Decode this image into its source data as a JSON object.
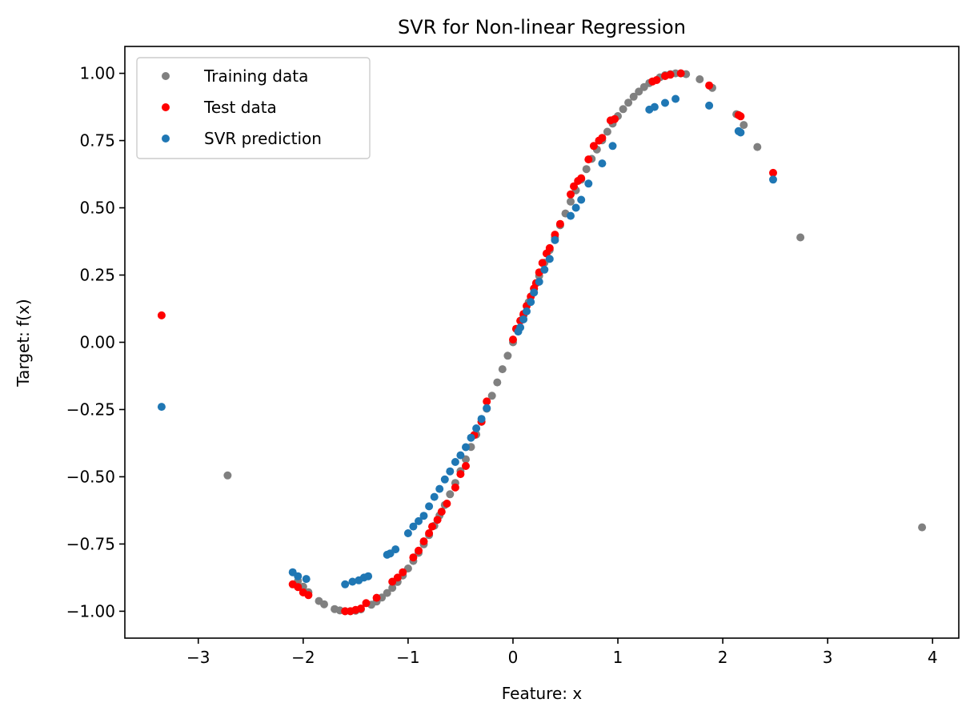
{
  "chart_data": {
    "type": "scatter",
    "title": "SVR for Non-linear Regression",
    "xlabel": "Feature: x",
    "ylabel": "Target: f(x)",
    "xlim": [
      -3.7,
      4.25
    ],
    "ylim": [
      -1.1,
      1.1
    ],
    "xticks": [
      -3,
      -2,
      -1,
      0,
      1,
      2,
      3,
      4
    ],
    "xtick_labels": [
      "−3",
      "−2",
      "−1",
      "0",
      "1",
      "2",
      "3",
      "4"
    ],
    "yticks": [
      1.0,
      0.75,
      0.5,
      0.25,
      0.0,
      -0.25,
      -0.5,
      -0.75,
      -1.0
    ],
    "ytick_labels": [
      "1.00",
      "0.75",
      "0.50",
      "0.25",
      "0.00",
      "−0.25",
      "−0.50",
      "−0.75",
      "−1.00"
    ],
    "grid": false,
    "legend_position": "top-left",
    "series": [
      {
        "name": "Training data",
        "color": "#808080",
        "x": [
          -2.72,
          -2.05,
          -2.0,
          -1.95,
          -1.85,
          -1.8,
          -1.7,
          -1.65,
          -1.6,
          -1.55,
          -1.5,
          -1.45,
          -1.35,
          -1.3,
          -1.25,
          -1.2,
          -1.15,
          -1.1,
          -1.05,
          -1.0,
          -0.95,
          -0.9,
          -0.85,
          -0.8,
          -0.75,
          -0.7,
          -0.65,
          -0.6,
          -0.55,
          -0.5,
          -0.45,
          -0.4,
          -0.35,
          -0.3,
          -0.25,
          -0.2,
          -0.15,
          -0.1,
          -0.05,
          0.0,
          0.05,
          0.1,
          0.15,
          0.2,
          0.25,
          0.3,
          0.35,
          0.4,
          0.45,
          0.5,
          0.55,
          0.6,
          0.65,
          0.7,
          0.75,
          0.8,
          0.85,
          0.9,
          0.95,
          1.0,
          1.05,
          1.1,
          1.15,
          1.2,
          1.25,
          1.3,
          1.4,
          1.45,
          1.5,
          1.55,
          1.6,
          1.65,
          1.78,
          1.9,
          2.13,
          2.2,
          2.33,
          2.74,
          3.9
        ],
        "y": [
          -0.495,
          -0.887,
          -0.909,
          -0.929,
          -0.962,
          -0.974,
          -0.992,
          -0.997,
          -1.0,
          -1.0,
          -0.998,
          -0.993,
          -0.976,
          -0.964,
          -0.949,
          -0.932,
          -0.913,
          -0.891,
          -0.867,
          -0.841,
          -0.813,
          -0.783,
          -0.751,
          -0.717,
          -0.682,
          -0.644,
          -0.605,
          -0.565,
          -0.523,
          -0.479,
          -0.435,
          -0.389,
          -0.343,
          -0.296,
          -0.247,
          -0.199,
          -0.149,
          -0.1,
          -0.05,
          0.0,
          0.05,
          0.1,
          0.149,
          0.199,
          0.247,
          0.296,
          0.343,
          0.389,
          0.435,
          0.479,
          0.523,
          0.565,
          0.605,
          0.644,
          0.682,
          0.717,
          0.751,
          0.783,
          0.813,
          0.841,
          0.867,
          0.891,
          0.913,
          0.932,
          0.949,
          0.964,
          0.985,
          0.993,
          0.997,
          1.0,
          1.0,
          0.997,
          0.978,
          0.946,
          0.848,
          0.808,
          0.726,
          0.39,
          -0.688
        ]
      },
      {
        "name": "Test data",
        "color": "#ff0000",
        "x": [
          -3.35,
          -2.1,
          -2.05,
          -2.0,
          -1.95,
          -1.6,
          -1.55,
          -1.5,
          -1.45,
          -1.4,
          -1.3,
          -1.15,
          -1.1,
          -1.05,
          -0.95,
          -0.9,
          -0.85,
          -0.8,
          -0.77,
          -0.72,
          -0.68,
          -0.63,
          -0.55,
          -0.5,
          -0.45,
          -0.37,
          -0.3,
          -0.25,
          0.0,
          0.03,
          0.07,
          0.1,
          0.13,
          0.17,
          0.2,
          0.22,
          0.25,
          0.28,
          0.32,
          0.35,
          0.4,
          0.45,
          0.55,
          0.58,
          0.62,
          0.65,
          0.72,
          0.77,
          0.82,
          0.85,
          0.93,
          0.97,
          1.33,
          1.37,
          1.45,
          1.5,
          1.6,
          1.87,
          2.15,
          2.17,
          2.48
        ],
        "y": [
          0.1,
          -0.9,
          -0.91,
          -0.93,
          -0.94,
          -1.0,
          -1.0,
          -0.995,
          -0.99,
          -0.97,
          -0.95,
          -0.89,
          -0.875,
          -0.855,
          -0.8,
          -0.775,
          -0.74,
          -0.71,
          -0.685,
          -0.66,
          -0.63,
          -0.6,
          -0.54,
          -0.49,
          -0.46,
          -0.345,
          -0.295,
          -0.22,
          0.01,
          0.05,
          0.08,
          0.105,
          0.135,
          0.17,
          0.2,
          0.22,
          0.26,
          0.295,
          0.33,
          0.35,
          0.4,
          0.44,
          0.55,
          0.58,
          0.6,
          0.61,
          0.68,
          0.73,
          0.75,
          0.76,
          0.825,
          0.83,
          0.97,
          0.975,
          0.99,
          0.995,
          1.0,
          0.955,
          0.845,
          0.84,
          0.63
        ]
      },
      {
        "name": "SVR prediction",
        "color": "#1f77b4",
        "x": [
          -3.35,
          -2.1,
          -2.05,
          -1.97,
          -1.6,
          -1.53,
          -1.47,
          -1.42,
          -1.38,
          -1.2,
          -1.17,
          -1.12,
          -1.0,
          -0.95,
          -0.9,
          -0.85,
          -0.8,
          -0.75,
          -0.7,
          -0.65,
          -0.6,
          -0.55,
          -0.5,
          -0.45,
          -0.4,
          -0.35,
          -0.3,
          -0.25,
          0.05,
          0.07,
          0.1,
          0.13,
          0.17,
          0.2,
          0.25,
          0.3,
          0.35,
          0.4,
          0.55,
          0.6,
          0.65,
          0.72,
          0.85,
          0.95,
          1.3,
          1.35,
          1.45,
          1.55,
          1.87,
          2.15,
          2.17,
          2.48
        ],
        "y": [
          -0.24,
          -0.855,
          -0.87,
          -0.88,
          -0.9,
          -0.89,
          -0.885,
          -0.875,
          -0.87,
          -0.79,
          -0.785,
          -0.77,
          -0.71,
          -0.685,
          -0.665,
          -0.645,
          -0.61,
          -0.575,
          -0.545,
          -0.51,
          -0.48,
          -0.445,
          -0.42,
          -0.39,
          -0.355,
          -0.32,
          -0.285,
          -0.245,
          0.04,
          0.055,
          0.085,
          0.115,
          0.15,
          0.185,
          0.225,
          0.27,
          0.31,
          0.38,
          0.47,
          0.5,
          0.53,
          0.59,
          0.665,
          0.73,
          0.865,
          0.875,
          0.89,
          0.905,
          0.88,
          0.785,
          0.78,
          0.605
        ]
      }
    ]
  }
}
